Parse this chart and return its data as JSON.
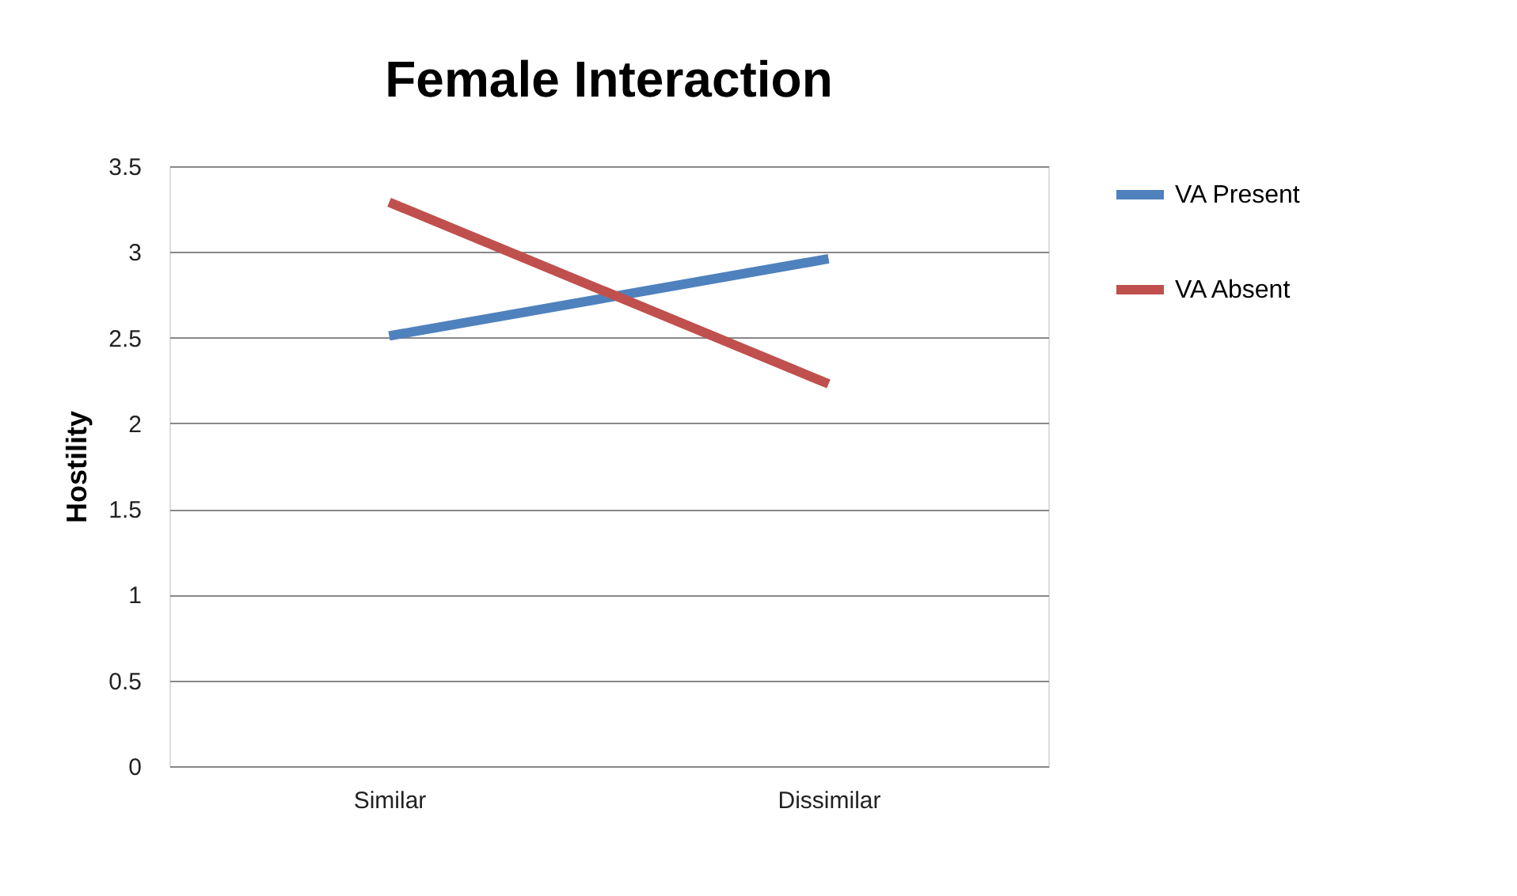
{
  "chart_data": {
    "type": "line",
    "title": "Female Interaction",
    "ylabel": "Hostility",
    "categories": [
      "Similar",
      "Dissimilar"
    ],
    "series": [
      {
        "name": "VA Present",
        "color": "#4f81bd",
        "values": [
          2.51,
          2.96
        ]
      },
      {
        "name": "VA Absent",
        "color": "#c0504d",
        "values": [
          3.29,
          2.23
        ]
      }
    ],
    "ylim": [
      0,
      3.5
    ],
    "yticks": [
      0,
      0.5,
      1,
      1.5,
      2,
      2.5,
      3,
      3.5
    ],
    "grid": "y",
    "legend": "right",
    "marker": "none",
    "line_style": "solid"
  }
}
